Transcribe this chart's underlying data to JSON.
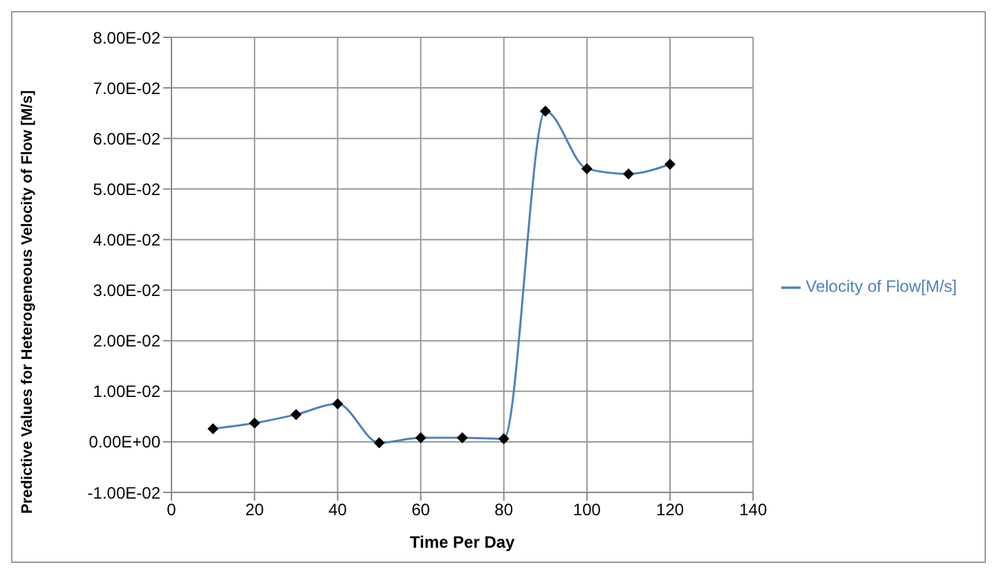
{
  "chart_data": {
    "type": "line",
    "xlabel": "Time Per Day",
    "ylabel": "Predictive Values for Heterogeneous Velocity of Flow [M/s]",
    "x": [
      10,
      20,
      30,
      40,
      50,
      60,
      70,
      80,
      90,
      100,
      110,
      120
    ],
    "series": [
      {
        "name": "Velocity of Flow[M/s]",
        "color": "#4f81bd",
        "values": [
          0.0026,
          0.0037,
          0.0054,
          0.0075,
          -0.0002,
          0.0008,
          0.0008,
          0.0006,
          0.0654,
          0.054,
          0.053,
          0.0549
        ]
      }
    ],
    "xlim": [
      0,
      140
    ],
    "xticks": [
      0,
      20,
      40,
      60,
      80,
      100,
      120,
      140
    ],
    "ylim": [
      -0.01,
      0.08
    ],
    "yticks": [
      {
        "value": -0.01,
        "label": "-1.00E-02"
      },
      {
        "value": 0,
        "label": "0.00E+00"
      },
      {
        "value": 0.01,
        "label": "1.00E-02"
      },
      {
        "value": 0.02,
        "label": "2.00E-02"
      },
      {
        "value": 0.03,
        "label": "3.00E-02"
      },
      {
        "value": 0.04,
        "label": "4.00E-02"
      },
      {
        "value": 0.05,
        "label": "5.00E-02"
      },
      {
        "value": 0.06,
        "label": "6.00E-02"
      },
      {
        "value": 0.07,
        "label": "7.00E-02"
      },
      {
        "value": 0.08,
        "label": "8.00E-02"
      }
    ],
    "grid": true,
    "legend": "right",
    "marker": "diamond",
    "line_style": "solid"
  }
}
